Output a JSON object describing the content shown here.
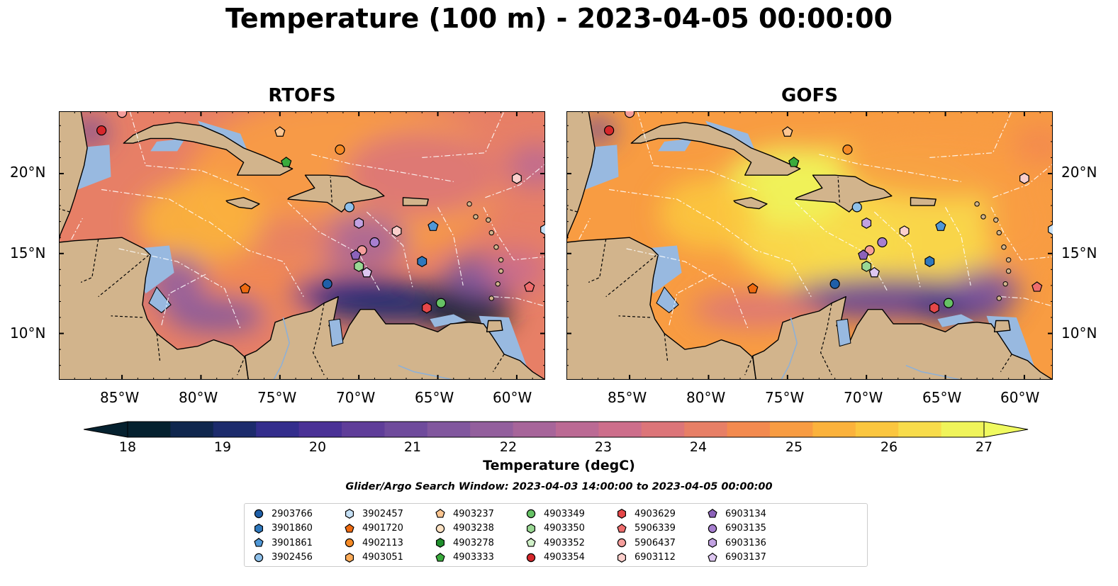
{
  "title": "Temperature (100 m) - 2023-04-05 00:00:00",
  "panels": [
    {
      "name": "rtofs",
      "title": "RTOFS"
    },
    {
      "name": "gofs",
      "title": "GOFS"
    }
  ],
  "lat_labels": [
    "20°N",
    "15°N",
    "10°N"
  ],
  "lon_labels": [
    "85°W",
    "80°W",
    "75°W",
    "70°W",
    "65°W",
    "60°W"
  ],
  "map_extent": {
    "lon": [
      -89,
      -58.2
    ],
    "lat": [
      7.1,
      23.9
    ]
  },
  "colorbar": {
    "label": "Temperature (degC)",
    "ticks": [
      "18",
      "19",
      "20",
      "21",
      "22",
      "23",
      "24",
      "25",
      "26",
      "27"
    ],
    "range": [
      18,
      27
    ],
    "colors": [
      "#05212f",
      "#0f264d",
      "#1c2b6c",
      "#332d8c",
      "#4a3196",
      "#5f3d99",
      "#6f4b9c",
      "#81579e",
      "#935f9d",
      "#a7659a",
      "#bb6a94",
      "#cd6e8b",
      "#dc7579",
      "#e77f66",
      "#f38a4f",
      "#f89c42",
      "#fbb23c",
      "#fbc63f",
      "#f8dc4b",
      "#f0f45a"
    ],
    "over_color": "#f0fa60"
  },
  "search_window": "Glider/Argo Search Window: 2023-04-03 14:00:00 to 2023-04-05 00:00:00",
  "legend": [
    {
      "id": "2903766",
      "marker": "circle",
      "color": "#1f5fa8"
    },
    {
      "id": "3901860",
      "marker": "hexagon",
      "color": "#2f78bd"
    },
    {
      "id": "3901861",
      "marker": "pentagon",
      "color": "#4f97d6"
    },
    {
      "id": "3902456",
      "marker": "circle",
      "color": "#8ec0ea"
    },
    {
      "id": "3902457",
      "marker": "hexagon",
      "color": "#c6e1f6"
    },
    {
      "id": "4901720",
      "marker": "pentagon",
      "color": "#ee6a10"
    },
    {
      "id": "4902113",
      "marker": "circle",
      "color": "#f58a25"
    },
    {
      "id": "4903051",
      "marker": "hexagon",
      "color": "#fbab58"
    },
    {
      "id": "4903237",
      "marker": "pentagon",
      "color": "#fdc691"
    },
    {
      "id": "4903238",
      "marker": "circle",
      "color": "#fde2c3"
    },
    {
      "id": "4903278",
      "marker": "hexagon",
      "color": "#1f8f2c"
    },
    {
      "id": "4903333",
      "marker": "pentagon",
      "color": "#3aab3c"
    },
    {
      "id": "4903349",
      "marker": "circle",
      "color": "#66c265"
    },
    {
      "id": "4903350",
      "marker": "hexagon",
      "color": "#9ad894"
    },
    {
      "id": "4903352",
      "marker": "pentagon",
      "color": "#d0f0c8"
    },
    {
      "id": "4903354",
      "marker": "circle",
      "color": "#d6272b"
    },
    {
      "id": "4903629",
      "marker": "hexagon",
      "color": "#e54749"
    },
    {
      "id": "5906339",
      "marker": "pentagon",
      "color": "#ef6d6d"
    },
    {
      "id": "5906437",
      "marker": "circle",
      "color": "#f59e9c"
    },
    {
      "id": "6903112",
      "marker": "hexagon",
      "color": "#fbcfcc"
    },
    {
      "id": "6903134",
      "marker": "pentagon",
      "color": "#8c62ba"
    },
    {
      "id": "6903135",
      "marker": "circle",
      "color": "#a77fd0"
    },
    {
      "id": "6903136",
      "marker": "hexagon",
      "color": "#c2a2e2"
    },
    {
      "id": "6903137",
      "marker": "pentagon",
      "color": "#ddc6f0"
    }
  ],
  "floats": [
    {
      "id": "4903354",
      "lon": -86.3,
      "lat": 22.7
    },
    {
      "id": "5906437",
      "lon": -85.0,
      "lat": 23.8
    },
    {
      "id": "4903237",
      "lon": -75.0,
      "lat": 22.6
    },
    {
      "id": "4902113",
      "lon": -71.2,
      "lat": 21.5
    },
    {
      "id": "4903333",
      "lon": -74.6,
      "lat": 20.7
    },
    {
      "id": "6903112",
      "lon": -60.0,
      "lat": 19.7
    },
    {
      "id": "3902456",
      "lon": -70.6,
      "lat": 17.9
    },
    {
      "id": "6903136",
      "lon": -70.0,
      "lat": 16.9
    },
    {
      "id": "6903112",
      "lon": -67.6,
      "lat": 16.4
    },
    {
      "id": "3901861",
      "lon": -65.3,
      "lat": 16.7
    },
    {
      "id": "3902457",
      "lon": -58.2,
      "lat": 16.5
    },
    {
      "id": "6903135",
      "lon": -69.0,
      "lat": 15.7
    },
    {
      "id": "5906437",
      "lon": -69.8,
      "lat": 15.2
    },
    {
      "id": "6903134",
      "lon": -70.2,
      "lat": 14.9
    },
    {
      "id": "3901860",
      "lon": -66.0,
      "lat": 14.5
    },
    {
      "id": "4903350",
      "lon": -70.0,
      "lat": 14.2
    },
    {
      "id": "6903137",
      "lon": -69.5,
      "lat": 13.8
    },
    {
      "id": "2903766",
      "lon": -72.0,
      "lat": 13.1
    },
    {
      "id": "4901720",
      "lon": -77.2,
      "lat": 12.8
    },
    {
      "id": "5906339",
      "lon": -59.2,
      "lat": 12.9
    },
    {
      "id": "4903349",
      "lon": -64.8,
      "lat": 11.9
    },
    {
      "id": "4903629",
      "lon": -65.7,
      "lat": 11.6
    }
  ]
}
